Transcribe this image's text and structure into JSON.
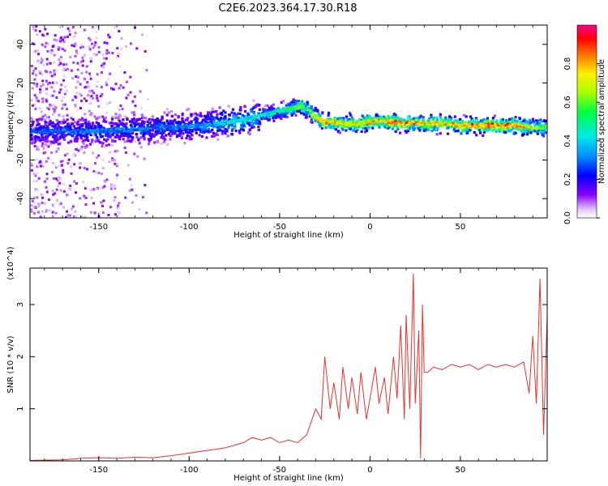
{
  "page": {
    "title": "C2E6.2023.364.17.30.R18"
  },
  "chart_data": [
    {
      "id": "spectrogram",
      "type": "heatmap",
      "title": "C2E6.2023.364.17.30.R18",
      "xlabel": "Height of straight line (km)",
      "ylabel": "Frequency (Hz)",
      "xlim": [
        -188,
        98
      ],
      "ylim": [
        -50,
        50
      ],
      "xticks": [
        -150,
        -100,
        -50,
        0,
        50
      ],
      "yticks": [
        -40,
        -20,
        0,
        20,
        40
      ],
      "colorbar": {
        "label": "Normalized spectral amplitude",
        "range": [
          0,
          1
        ],
        "ticks": [
          0.0,
          0.2,
          0.4,
          0.6,
          0.8
        ],
        "tick_labels": [
          "0.0",
          "0.2",
          "0.4",
          "0.6",
          "0.8"
        ],
        "colormap": [
          "#ffffff",
          "#c8a0f0",
          "#7a00ff",
          "#0000ff",
          "#0090ff",
          "#00e0e0",
          "#00ff60",
          "#a0ff00",
          "#ffff00",
          "#ff8000",
          "#ff0000",
          "#ff00a0"
        ]
      },
      "ridge": {
        "description": "Doppler ridge of peak spectral amplitude vs height",
        "x": [
          -188,
          -170,
          -150,
          -130,
          -110,
          -90,
          -75,
          -65,
          -55,
          -48,
          -42,
          -38,
          -34,
          -30,
          -25,
          -15,
          -5,
          0,
          10,
          20,
          30,
          40,
          50,
          60,
          70,
          80,
          90,
          98
        ],
        "frequency_hz": [
          -5,
          -5,
          -5,
          -4,
          -3,
          -2,
          0,
          2,
          4,
          6,
          7,
          8,
          6,
          2,
          0,
          -1,
          -1,
          0,
          0,
          -1,
          -1,
          -1,
          -2,
          -2,
          -2,
          -2,
          -3,
          -3
        ],
        "peak_amplitude": [
          0.3,
          0.35,
          0.35,
          0.35,
          0.35,
          0.4,
          0.5,
          0.5,
          0.5,
          0.55,
          0.6,
          0.7,
          0.65,
          0.85,
          0.9,
          0.85,
          0.8,
          0.9,
          0.95,
          0.95,
          0.9,
          0.85,
          0.9,
          0.95,
          0.95,
          0.95,
          0.8,
          0.7
        ]
      }
    },
    {
      "id": "snr",
      "type": "line",
      "xlabel": "Height of straight line (km)",
      "ylabel": "SNR (10 * v/v)",
      "y_multiplier": "(x10^4)",
      "xlim": [
        -188,
        98
      ],
      "ylim": [
        0,
        3.7
      ],
      "xticks": [
        -150,
        -100,
        -50,
        0,
        50
      ],
      "yticks": [
        1,
        2,
        3
      ],
      "color": "#e8322a",
      "x": [
        -188,
        -170,
        -160,
        -150,
        -140,
        -130,
        -120,
        -110,
        -100,
        -90,
        -80,
        -70,
        -65,
        -60,
        -55,
        -50,
        -45,
        -40,
        -35,
        -30,
        -27,
        -25,
        -22,
        -20,
        -17,
        -15,
        -12,
        -10,
        -7,
        -5,
        -2,
        0,
        3,
        5,
        8,
        10,
        13,
        15,
        17,
        19,
        20,
        22,
        24,
        25,
        27,
        28,
        29,
        30,
        32,
        35,
        40,
        45,
        50,
        55,
        60,
        65,
        70,
        75,
        80,
        85,
        88,
        90,
        92,
        94,
        96,
        98
      ],
      "y": [
        0.01,
        0.02,
        0.05,
        0.06,
        0.05,
        0.07,
        0.06,
        0.1,
        0.15,
        0.2,
        0.25,
        0.35,
        0.45,
        0.4,
        0.45,
        0.35,
        0.4,
        0.35,
        0.5,
        1.0,
        0.8,
        2.0,
        1.0,
        1.5,
        0.8,
        1.8,
        1.0,
        1.6,
        0.9,
        1.7,
        0.8,
        1.2,
        1.8,
        1.1,
        1.6,
        0.9,
        2.0,
        1.2,
        2.6,
        0.8,
        2.8,
        1.0,
        3.6,
        1.1,
        2.5,
        0.05,
        3.0,
        1.7,
        1.7,
        1.8,
        1.75,
        1.85,
        1.8,
        1.85,
        1.75,
        1.85,
        1.8,
        1.85,
        1.8,
        1.9,
        1.3,
        2.4,
        1.1,
        3.5,
        0.5,
        2.8
      ]
    }
  ]
}
